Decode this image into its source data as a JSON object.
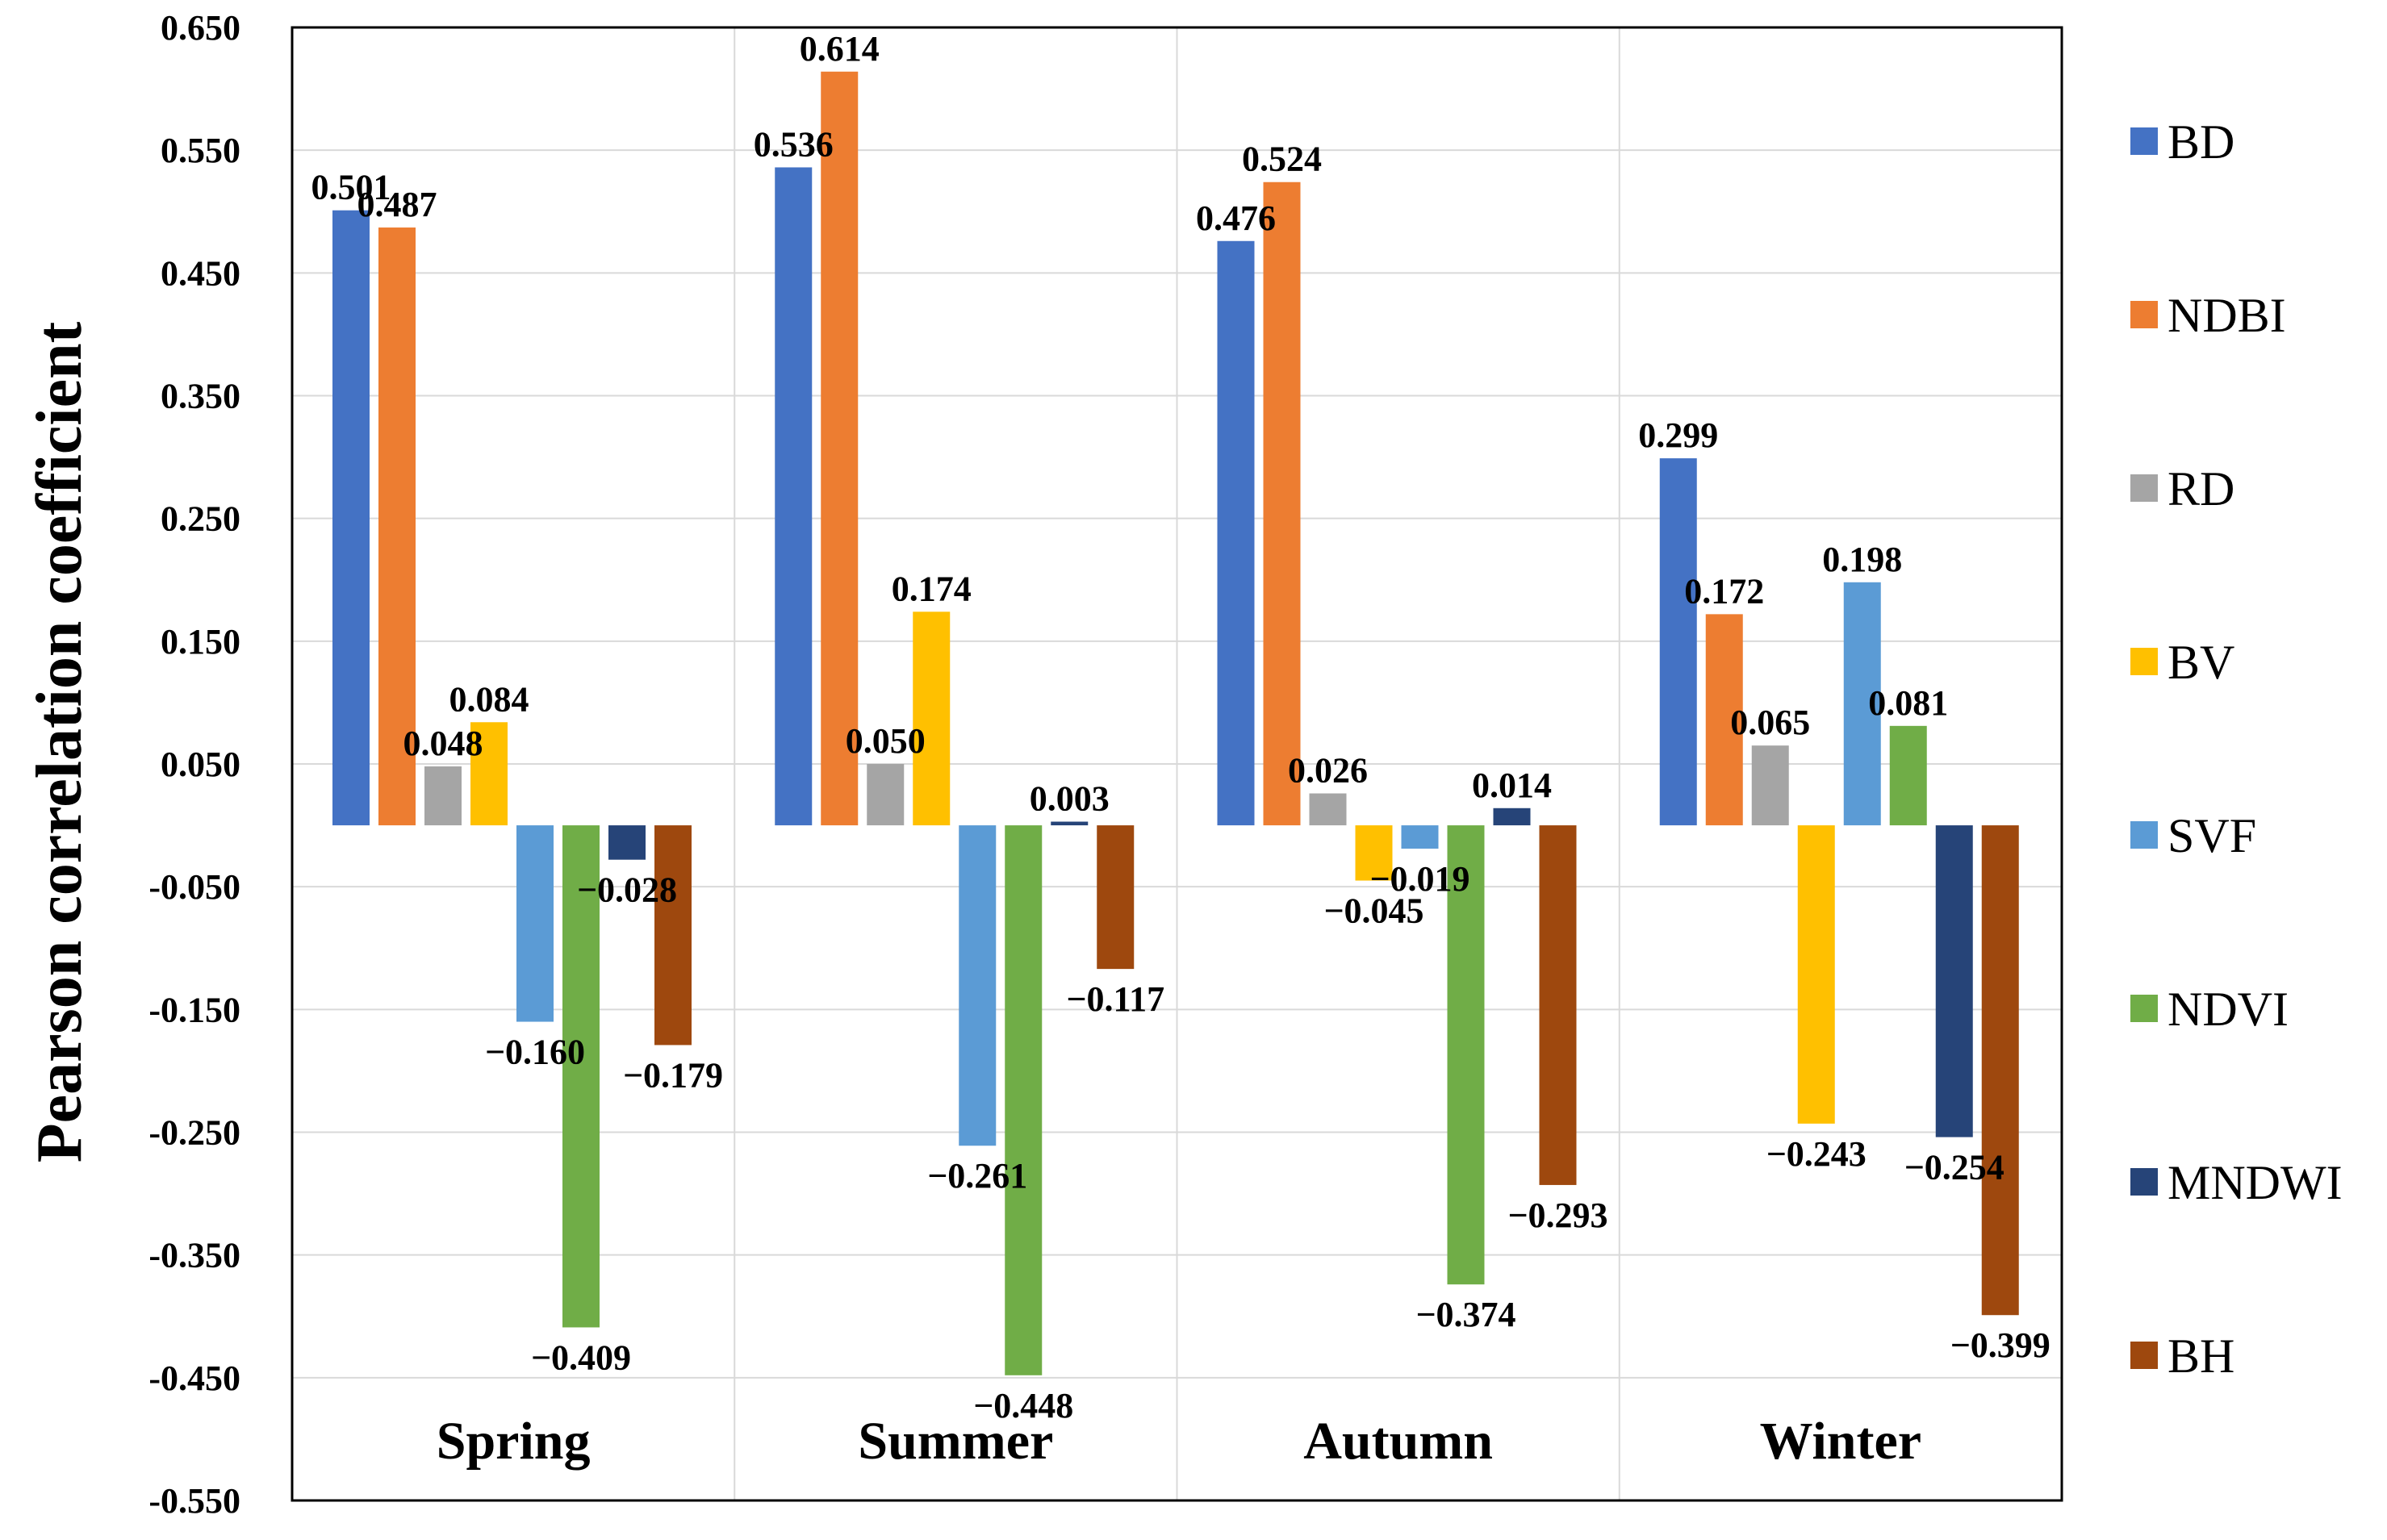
{
  "chart_data": {
    "type": "bar",
    "title": "",
    "xlabel": "",
    "ylabel": "Pearson correlation coefficient",
    "ylim": [
      -0.55,
      0.65
    ],
    "yticks": [
      "0.650",
      "0.550",
      "0.450",
      "0.350",
      "0.250",
      "0.150",
      "0.050",
      "-0.050",
      "-0.150",
      "-0.250",
      "-0.350",
      "-0.450",
      "-0.550"
    ],
    "ytick_values": [
      0.65,
      0.55,
      0.45,
      0.35,
      0.25,
      0.15,
      0.05,
      -0.05,
      -0.15,
      -0.25,
      -0.35,
      -0.45,
      -0.55
    ],
    "categories": [
      "Spring",
      "Summer",
      "Autumn",
      "Winter"
    ],
    "grid": true,
    "legend_position": "right",
    "series": [
      {
        "name": "BD",
        "color": "#4472C4",
        "values": [
          0.501,
          0.536,
          0.476,
          0.299
        ],
        "labels": [
          "0.501",
          "0.536",
          "0.476",
          "0.299"
        ]
      },
      {
        "name": "NDBI",
        "color": "#ED7D31",
        "values": [
          0.487,
          0.614,
          0.524,
          0.172
        ],
        "labels": [
          "0.487",
          "0.614",
          "0.524",
          "0.172"
        ]
      },
      {
        "name": "RD",
        "color": "#A5A5A5",
        "values": [
          0.048,
          0.05,
          0.026,
          0.065
        ],
        "labels": [
          "0.048",
          "0.050",
          "0.026",
          "0.065"
        ]
      },
      {
        "name": "BV",
        "color": "#FFC000",
        "values": [
          0.084,
          0.174,
          -0.045,
          -0.243
        ],
        "labels": [
          "0.084",
          "0.174",
          "−0.045",
          "−0.243"
        ]
      },
      {
        "name": "SVF",
        "color": "#5B9BD5",
        "values": [
          -0.16,
          -0.261,
          -0.019,
          0.198
        ],
        "labels": [
          "−0.160",
          "−0.261",
          "−0.019",
          "0.198"
        ]
      },
      {
        "name": "NDVI",
        "color": "#70AD47",
        "values": [
          -0.409,
          -0.448,
          -0.374,
          0.081
        ],
        "labels": [
          "−0.409",
          "−0.448",
          "−0.374",
          "0.081"
        ]
      },
      {
        "name": "MNDWI",
        "color": "#264478",
        "values": [
          -0.028,
          0.003,
          0.014,
          -0.254
        ],
        "labels": [
          "−0.028",
          "0.003",
          "0.014",
          "−0.254"
        ]
      },
      {
        "name": "BH",
        "color": "#9E480E",
        "values": [
          -0.179,
          -0.117,
          -0.293,
          -0.399
        ],
        "labels": [
          "−0.179",
          "−0.117",
          "−0.293",
          "−0.399"
        ]
      }
    ]
  }
}
